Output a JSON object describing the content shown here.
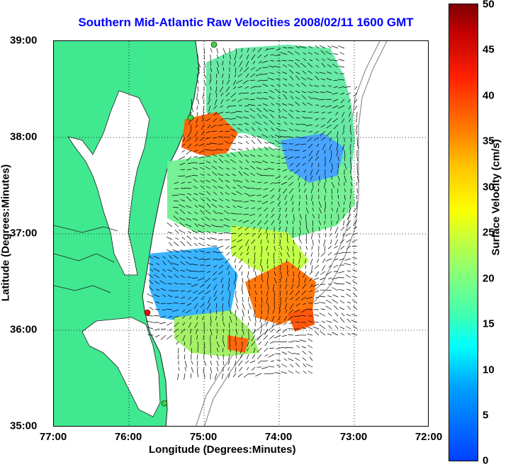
{
  "title": "Southern Mid-Atlantic Raw Velocities 2008/02/11 1600 GMT",
  "x_axis": {
    "label": "Longitude (Degrees:Minutes)",
    "ticks": [
      "77:00",
      "76:00",
      "75:00",
      "74:00",
      "73:00",
      "72:00"
    ]
  },
  "y_axis": {
    "label": "Latitude (Degrees:Minutes)",
    "ticks": [
      "39:00",
      "38:00",
      "37:00",
      "36:00",
      "35:00"
    ]
  },
  "colorbar": {
    "label": "Surface Velocity (cm/s)",
    "ticks": [
      "50",
      "45",
      "40",
      "35",
      "30",
      "25",
      "20",
      "15",
      "10",
      "5",
      "0"
    ],
    "range": [
      0,
      50
    ]
  },
  "colors": {
    "land": "#40e890",
    "water": "#ffffff",
    "coastline": "#202020",
    "bathymetry": "#909090",
    "title": "#0000ff",
    "site_green": "#40d040",
    "site_red": "#ff0000"
  },
  "map": {
    "lon_range": [
      "77:00",
      "72:00"
    ],
    "lat_range": [
      "35:00",
      "39:00"
    ],
    "grid": "dotted"
  }
}
